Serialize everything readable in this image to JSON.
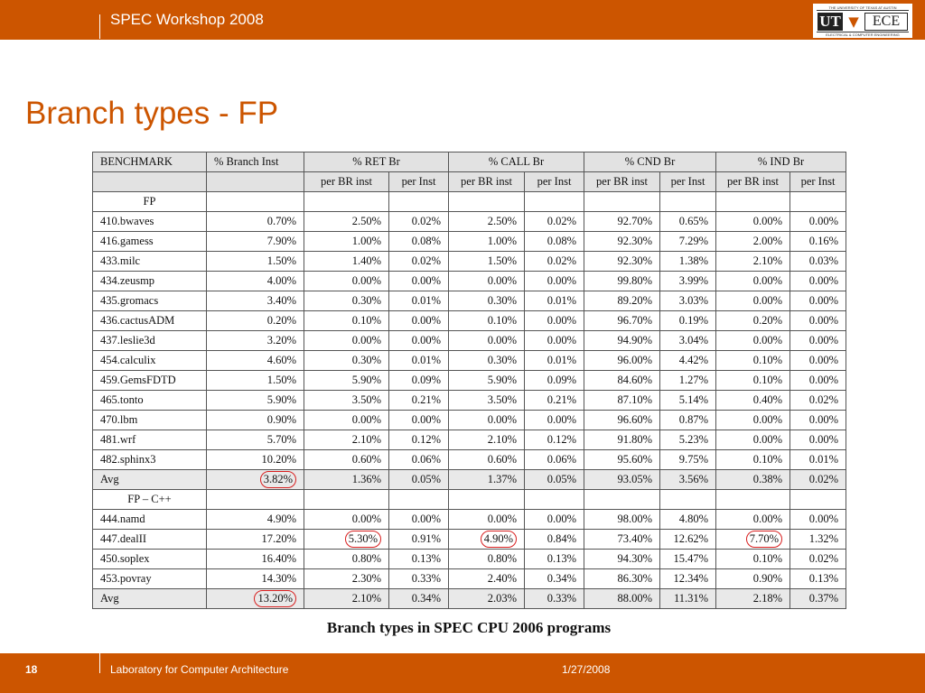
{
  "header": {
    "workshop": "SPEC Workshop 2008",
    "logo": {
      "top_text": "THE UNIVERSITY OF TEXAS AT AUSTIN",
      "ut": "UT",
      "ece": "ECE",
      "bottom_text": "ELECTRICAL & COMPUTER ENGINEERING"
    }
  },
  "slide": {
    "title": "Branch types - FP"
  },
  "table": {
    "head": {
      "benchmark": "BENCHMARK",
      "branch_inst": "% Branch Inst",
      "groups": [
        "% RET Br",
        "% CALL Br",
        "% CND Br",
        "% IND Br"
      ],
      "sub": [
        "per BR inst",
        "per Inst",
        "per BR inst",
        "per Inst",
        "per BR inst",
        "per Inst",
        "per BR inst",
        "per Inst"
      ]
    },
    "sections": [
      {
        "label": "FP",
        "rows": [
          [
            "410.bwaves",
            "0.70%",
            "2.50%",
            "0.02%",
            "2.50%",
            "0.02%",
            "92.70%",
            "0.65%",
            "0.00%",
            "0.00%"
          ],
          [
            "416.gamess",
            "7.90%",
            "1.00%",
            "0.08%",
            "1.00%",
            "0.08%",
            "92.30%",
            "7.29%",
            "2.00%",
            "0.16%"
          ],
          [
            "433.milc",
            "1.50%",
            "1.40%",
            "0.02%",
            "1.50%",
            "0.02%",
            "92.30%",
            "1.38%",
            "2.10%",
            "0.03%"
          ],
          [
            "434.zeusmp",
            "4.00%",
            "0.00%",
            "0.00%",
            "0.00%",
            "0.00%",
            "99.80%",
            "3.99%",
            "0.00%",
            "0.00%"
          ],
          [
            "435.gromacs",
            "3.40%",
            "0.30%",
            "0.01%",
            "0.30%",
            "0.01%",
            "89.20%",
            "3.03%",
            "0.00%",
            "0.00%"
          ],
          [
            "436.cactusADM",
            "0.20%",
            "0.10%",
            "0.00%",
            "0.10%",
            "0.00%",
            "96.70%",
            "0.19%",
            "0.20%",
            "0.00%"
          ],
          [
            "437.leslie3d",
            "3.20%",
            "0.00%",
            "0.00%",
            "0.00%",
            "0.00%",
            "94.90%",
            "3.04%",
            "0.00%",
            "0.00%"
          ],
          [
            "454.calculix",
            "4.60%",
            "0.30%",
            "0.01%",
            "0.30%",
            "0.01%",
            "96.00%",
            "4.42%",
            "0.10%",
            "0.00%"
          ],
          [
            "459.GemsFDTD",
            "1.50%",
            "5.90%",
            "0.09%",
            "5.90%",
            "0.09%",
            "84.60%",
            "1.27%",
            "0.10%",
            "0.00%"
          ],
          [
            "465.tonto",
            "5.90%",
            "3.50%",
            "0.21%",
            "3.50%",
            "0.21%",
            "87.10%",
            "5.14%",
            "0.40%",
            "0.02%"
          ],
          [
            "470.lbm",
            "0.90%",
            "0.00%",
            "0.00%",
            "0.00%",
            "0.00%",
            "96.60%",
            "0.87%",
            "0.00%",
            "0.00%"
          ],
          [
            "481.wrf",
            "5.70%",
            "2.10%",
            "0.12%",
            "2.10%",
            "0.12%",
            "91.80%",
            "5.23%",
            "0.00%",
            "0.00%"
          ],
          [
            "482.sphinx3",
            "10.20%",
            "0.60%",
            "0.06%",
            "0.60%",
            "0.06%",
            "95.60%",
            "9.75%",
            "0.10%",
            "0.01%"
          ]
        ],
        "avg": [
          "Avg",
          "3.82%",
          "1.36%",
          "0.05%",
          "1.37%",
          "0.05%",
          "93.05%",
          "3.56%",
          "0.38%",
          "0.02%"
        ]
      },
      {
        "label": "FP – C++",
        "rows": [
          [
            "444.namd",
            "4.90%",
            "0.00%",
            "0.00%",
            "0.00%",
            "0.00%",
            "98.00%",
            "4.80%",
            "0.00%",
            "0.00%"
          ],
          [
            "447.dealII",
            "17.20%",
            "5.30%",
            "0.91%",
            "4.90%",
            "0.84%",
            "73.40%",
            "12.62%",
            "7.70%",
            "1.32%"
          ],
          [
            "450.soplex",
            "16.40%",
            "0.80%",
            "0.13%",
            "0.80%",
            "0.13%",
            "94.30%",
            "15.47%",
            "0.10%",
            "0.02%"
          ],
          [
            "453.povray",
            "14.30%",
            "2.30%",
            "0.33%",
            "2.40%",
            "0.34%",
            "86.30%",
            "12.34%",
            "0.90%",
            "0.13%"
          ]
        ],
        "avg": [
          "Avg",
          "13.20%",
          "2.10%",
          "0.34%",
          "2.03%",
          "0.33%",
          "88.00%",
          "11.31%",
          "2.18%",
          "0.37%"
        ]
      }
    ],
    "caption": "Branch types in SPEC CPU 2006 programs"
  },
  "footer": {
    "page_number": "18",
    "lab": "Laboratory for Computer Architecture",
    "date": "1/27/2008"
  },
  "colors": {
    "accent": "#cc5500",
    "header_fill": "#e2e2e2",
    "circle": "#d81e1e"
  }
}
